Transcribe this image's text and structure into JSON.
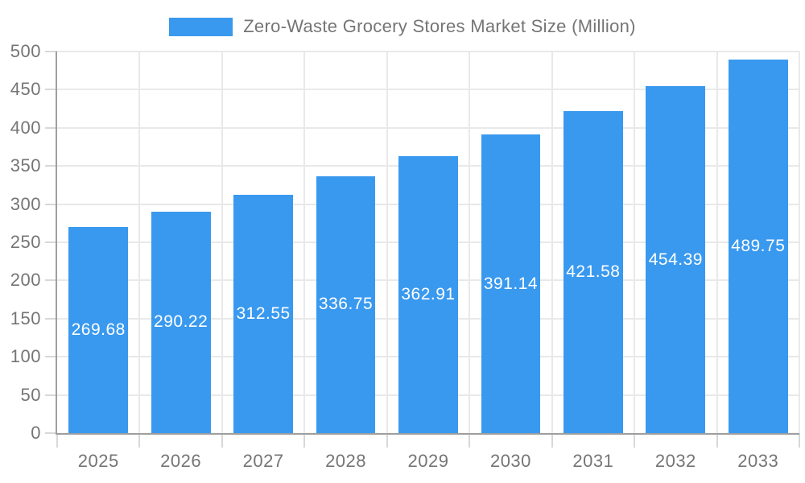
{
  "legend": {
    "label": "Zero-Waste Grocery Stores Market Size (Million)"
  },
  "chart_data": {
    "type": "bar",
    "title": "Zero-Waste Grocery Stores Market Size (Million)",
    "series_name": "Zero-Waste Grocery Stores Market Size (Million)",
    "categories": [
      "2025",
      "2026",
      "2027",
      "2028",
      "2029",
      "2030",
      "2031",
      "2032",
      "2033"
    ],
    "values": [
      269.68,
      290.22,
      312.55,
      336.75,
      362.91,
      391.14,
      421.58,
      454.39,
      489.75
    ],
    "xlabel": "",
    "ylabel": "",
    "ylim": [
      0,
      500
    ],
    "ytick_step": 50,
    "ytick_labels": [
      "0",
      "50",
      "100",
      "150",
      "200",
      "250",
      "300",
      "350",
      "400",
      "450",
      "500"
    ],
    "grid": true,
    "legend_position": "top-center",
    "value_labels": "inside-center",
    "colors": {
      "bar": "#3999ef",
      "grid": "#e9e9e9",
      "axis": "#9e9e9e",
      "tick": "#d8d8d8",
      "text": "#757575",
      "value_text": "#ffffff",
      "background": "#ffffff"
    }
  }
}
